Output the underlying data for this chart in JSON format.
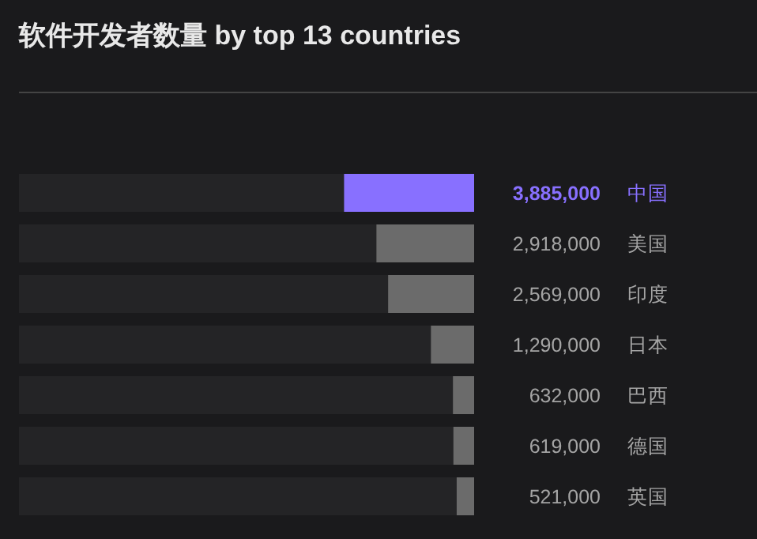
{
  "chart_data": {
    "type": "bar",
    "orientation": "horizontal",
    "title": "软件开发者数量 by top 13 countries",
    "categories": [
      "中国",
      "美国",
      "印度",
      "日本",
      "巴西",
      "德国",
      "英国"
    ],
    "values": [
      3885000,
      2918000,
      2569000,
      1290000,
      632000,
      619000,
      521000
    ],
    "value_labels": [
      "3,885,000",
      "2,918,000",
      "2,569,000",
      "1,290,000",
      "632,000",
      "619,000",
      "521,000"
    ],
    "colors": [
      "#8870ff",
      "#6b6b6b",
      "#6b6b6b",
      "#6b6b6b",
      "#6b6b6b",
      "#6b6b6b",
      "#6b6b6b"
    ]
  }
}
